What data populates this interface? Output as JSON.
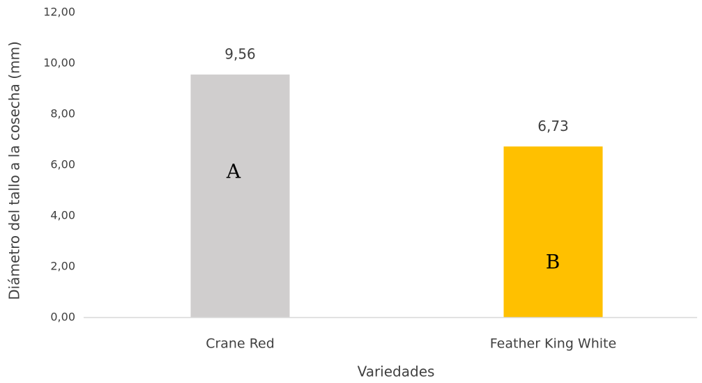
{
  "chart_data": {
    "type": "bar",
    "categories": [
      "Crane Red",
      "Feather King White"
    ],
    "values": [
      9.56,
      6.73
    ],
    "value_labels": [
      "9,56",
      "6,73"
    ],
    "colors": [
      "#d0cece",
      "#ffc000"
    ],
    "annotations": [
      "A",
      "B"
    ],
    "xlabel": "Variedades",
    "ylabel": "Diámetro del tallo a la cosecha (mm)",
    "ylim": [
      0,
      12
    ],
    "yticks": [
      {
        "value": 0,
        "label": "0,00"
      },
      {
        "value": 2,
        "label": "2,00"
      },
      {
        "value": 4,
        "label": "4,00"
      },
      {
        "value": 6,
        "label": "6,00"
      },
      {
        "value": 8,
        "label": "8,00"
      },
      {
        "value": 10,
        "label": "10,00"
      },
      {
        "value": 12,
        "label": "12,00"
      }
    ],
    "grid": false
  }
}
